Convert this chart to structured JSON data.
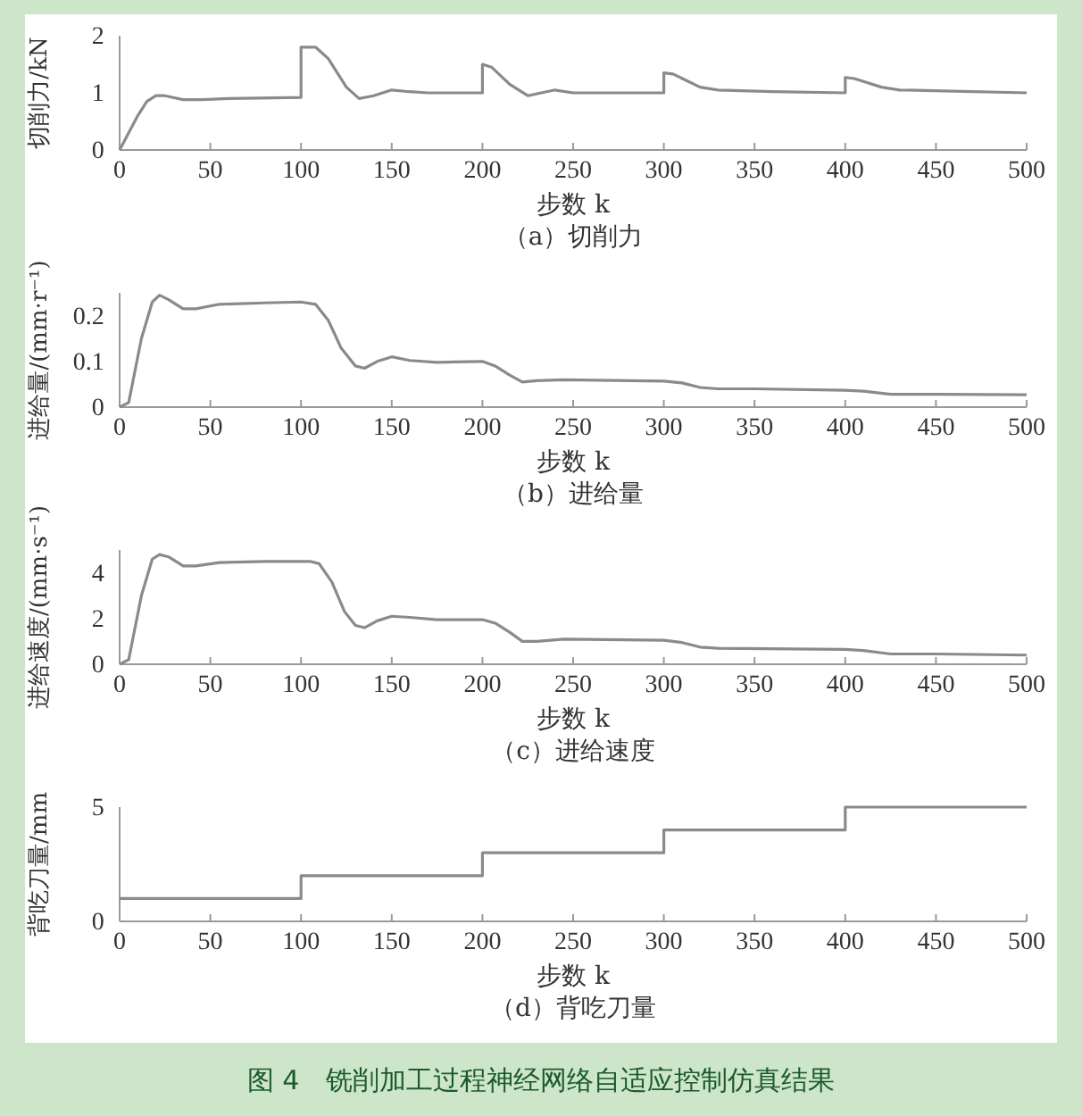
{
  "chart_data": [
    {
      "type": "line",
      "ylabel": "切削力/kN",
      "xlabel": "步数 k",
      "annotations": [
        "（a）切削力"
      ],
      "xlim": [
        0,
        500
      ],
      "xticks": [
        0,
        50,
        100,
        150,
        200,
        250,
        300,
        350,
        400,
        450,
        500
      ],
      "ylim": [
        0,
        2
      ],
      "yticks": [
        0,
        1,
        2
      ],
      "series": [
        {
          "color": "#8a8a8a",
          "x": [
            0,
            5,
            10,
            15,
            20,
            25,
            35,
            45,
            60,
            100,
            100,
            108,
            115,
            125,
            132,
            140,
            150,
            160,
            170,
            200,
            200,
            205,
            215,
            225,
            240,
            250,
            300,
            300,
            305,
            320,
            330,
            360,
            400,
            400,
            405,
            420,
            430,
            460,
            500
          ],
          "values": [
            0,
            0.3,
            0.6,
            0.85,
            0.95,
            0.95,
            0.88,
            0.88,
            0.9,
            0.92,
            1.8,
            1.8,
            1.6,
            1.1,
            0.9,
            0.95,
            1.05,
            1.02,
            1.0,
            1.0,
            1.5,
            1.45,
            1.15,
            0.95,
            1.05,
            1.0,
            1.0,
            1.35,
            1.33,
            1.1,
            1.05,
            1.02,
            1.0,
            1.27,
            1.25,
            1.1,
            1.05,
            1.03,
            1.0
          ]
        }
      ]
    },
    {
      "type": "line",
      "ylabel": "进给量/(mm·r⁻¹)",
      "xlabel": "步数 k",
      "annotations": [
        "（b）进给量"
      ],
      "xlim": [
        0,
        500
      ],
      "xticks": [
        0,
        50,
        100,
        150,
        200,
        250,
        300,
        350,
        400,
        450,
        500
      ],
      "ylim": [
        0,
        0.25
      ],
      "yticks": [
        0,
        0.1,
        0.2
      ],
      "series": [
        {
          "color": "#8a8a8a",
          "x": [
            0,
            5,
            12,
            18,
            22,
            27,
            35,
            42,
            55,
            80,
            100,
            108,
            115,
            122,
            130,
            135,
            142,
            150,
            160,
            175,
            200,
            207,
            215,
            222,
            230,
            245,
            300,
            310,
            320,
            330,
            350,
            400,
            410,
            425,
            450,
            500
          ],
          "values": [
            0,
            0.01,
            0.15,
            0.23,
            0.245,
            0.235,
            0.215,
            0.215,
            0.225,
            0.228,
            0.23,
            0.225,
            0.19,
            0.13,
            0.09,
            0.085,
            0.1,
            0.11,
            0.102,
            0.098,
            0.1,
            0.09,
            0.07,
            0.055,
            0.058,
            0.06,
            0.057,
            0.053,
            0.043,
            0.04,
            0.04,
            0.037,
            0.035,
            0.028,
            0.028,
            0.027
          ]
        }
      ]
    },
    {
      "type": "line",
      "ylabel": "进给速度/(mm·s⁻¹)",
      "xlabel": "步数 k",
      "annotations": [
        "（c）进给速度"
      ],
      "xlim": [
        0,
        500
      ],
      "xticks": [
        0,
        50,
        100,
        150,
        200,
        250,
        300,
        350,
        400,
        450,
        500
      ],
      "ylim": [
        0,
        5
      ],
      "yticks": [
        0,
        2,
        4
      ],
      "series": [
        {
          "color": "#8a8a8a",
          "x": [
            0,
            5,
            12,
            18,
            22,
            27,
            35,
            42,
            55,
            80,
            105,
            110,
            117,
            124,
            130,
            135,
            142,
            150,
            160,
            175,
            200,
            207,
            215,
            222,
            230,
            245,
            300,
            310,
            320,
            330,
            400,
            410,
            425,
            450,
            500
          ],
          "values": [
            0,
            0.2,
            3,
            4.6,
            4.8,
            4.7,
            4.3,
            4.3,
            4.45,
            4.5,
            4.5,
            4.4,
            3.6,
            2.3,
            1.7,
            1.6,
            1.9,
            2.1,
            2.05,
            1.95,
            1.95,
            1.8,
            1.4,
            1.0,
            1.0,
            1.1,
            1.05,
            0.95,
            0.75,
            0.7,
            0.65,
            0.6,
            0.45,
            0.45,
            0.4
          ]
        }
      ]
    },
    {
      "type": "step",
      "ylabel": "背吃刀量/mm",
      "xlabel": "步数 k",
      "annotations": [
        "（d）背吃刀量",
        "图 4　铣削加工过程神经网络自适应控制仿真结果"
      ],
      "xlim": [
        0,
        500
      ],
      "xticks": [
        0,
        50,
        100,
        150,
        200,
        250,
        300,
        350,
        400,
        450,
        500
      ],
      "ylim": [
        0,
        5
      ],
      "yticks": [
        0,
        5
      ],
      "series": [
        {
          "color": "#8a8a8a",
          "x": [
            0,
            100,
            200,
            300,
            400,
            500
          ],
          "values": [
            1,
            2,
            3,
            4,
            5,
            5
          ]
        }
      ]
    }
  ]
}
